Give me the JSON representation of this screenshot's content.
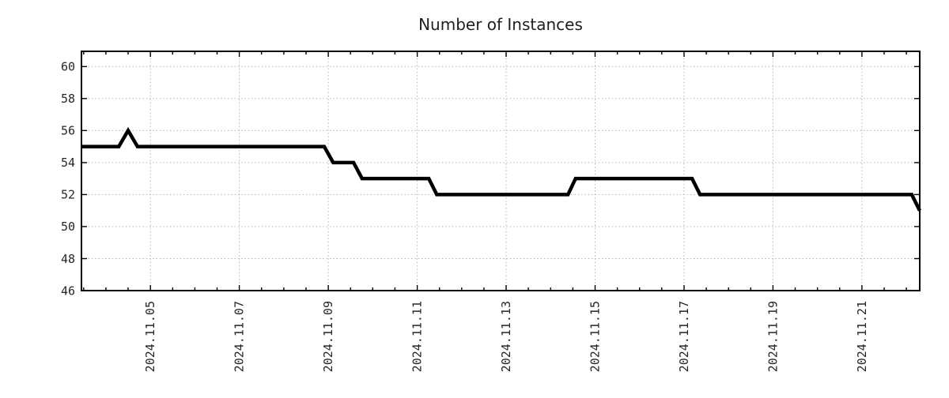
{
  "chart_data": {
    "type": "line",
    "title": "Number of Instances",
    "legend_position": "none",
    "background_color": "#ffffff",
    "grid": {
      "style": "dotted",
      "color": "#b3b3b3",
      "shown": true
    },
    "x_axis": {
      "label": "",
      "tick_labels": [
        "2024.11.05",
        "2024.11.07",
        "2024.11.09",
        "2024.11.11",
        "2024.11.13",
        "2024.11.15",
        "2024.11.17",
        "2024.11.19",
        "2024.11.21"
      ],
      "tick_days": [
        5,
        7,
        9,
        11,
        13,
        15,
        17,
        19,
        21
      ],
      "range_days": [
        3.45,
        22.3
      ],
      "minor_tick_step_days": 0.5,
      "tick_label_rotation_deg": 90
    },
    "y_axis": {
      "label": "",
      "tick_labels": [
        "46",
        "48",
        "50",
        "52",
        "54",
        "56",
        "58",
        "60"
      ],
      "ticks": [
        46,
        48,
        50,
        52,
        54,
        56,
        58,
        60
      ],
      "range": [
        46,
        60.95
      ]
    },
    "series": [
      {
        "name": "Number of Instances",
        "color": "#000000",
        "points_day_value": [
          [
            3.45,
            55
          ],
          [
            4.29,
            55
          ],
          [
            4.5,
            56
          ],
          [
            4.71,
            55
          ],
          [
            8.91,
            55
          ],
          [
            9.11,
            54
          ],
          [
            9.57,
            54
          ],
          [
            9.76,
            53
          ],
          [
            11.26,
            53
          ],
          [
            11.44,
            52
          ],
          [
            14.39,
            52
          ],
          [
            14.56,
            53
          ],
          [
            17.18,
            53
          ],
          [
            17.36,
            52
          ],
          [
            22.12,
            52
          ],
          [
            22.3,
            51
          ]
        ]
      }
    ]
  }
}
